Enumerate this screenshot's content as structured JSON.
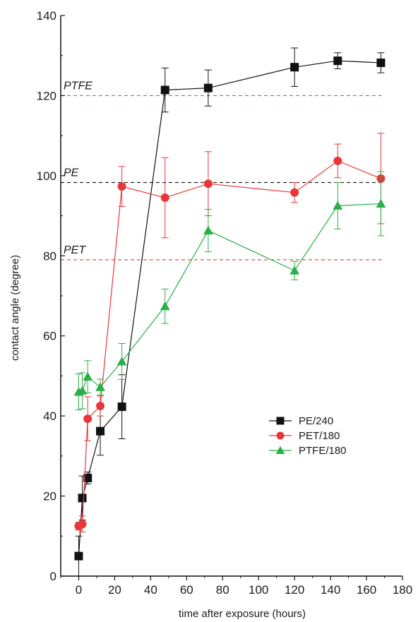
{
  "chart_data": {
    "type": "line",
    "title": "",
    "xlabel": "time after exposure (hours)",
    "ylabel": "contact angle (degree)",
    "xlim": [
      -10,
      180
    ],
    "ylim": [
      0,
      140
    ],
    "x_ticks": [
      0,
      20,
      40,
      60,
      80,
      100,
      120,
      140,
      160,
      180
    ],
    "y_ticks": [
      0,
      20,
      40,
      60,
      80,
      100,
      120,
      140
    ],
    "grid": false,
    "legend_position": "lower-right",
    "reference_lines": [
      {
        "label": "PTFE",
        "y": 120,
        "color": "#3aa655"
      },
      {
        "label": "PE",
        "y": 98.3,
        "color": "#222222"
      },
      {
        "label": "PET",
        "y": 79,
        "color": "#e8373a"
      }
    ],
    "series": [
      {
        "name": "PE/240",
        "color": "#111111",
        "marker": "square",
        "x": [
          0,
          2,
          5,
          12,
          24,
          48,
          72,
          120,
          144,
          168
        ],
        "y": [
          5,
          19.5,
          24.5,
          36.2,
          42.3,
          121.4,
          121.9,
          127.1,
          128.7,
          128.2
        ],
        "err": [
          5,
          5.5,
          1.5,
          6,
          8,
          5.5,
          4.5,
          4.8,
          2,
          2.5
        ]
      },
      {
        "name": "PET/180",
        "color": "#e8373a",
        "marker": "circle",
        "x": [
          0,
          2,
          5,
          12,
          24,
          48,
          72,
          120,
          144,
          168
        ],
        "y": [
          12.5,
          13,
          39.3,
          42.5,
          97.3,
          94.5,
          98,
          95.8,
          103.7,
          99.3
        ],
        "err": [
          1,
          2,
          5.5,
          2.5,
          5,
          10,
          8,
          2.5,
          4.2,
          11.3
        ]
      },
      {
        "name": "PTFE/180",
        "color": "#2ab04a",
        "marker": "triangle",
        "x": [
          0,
          2,
          5,
          12,
          24,
          48,
          72,
          120,
          144,
          168
        ],
        "y": [
          46,
          46.3,
          49.8,
          47.2,
          53.6,
          67.4,
          86.3,
          76.3,
          92.5,
          93
        ],
        "err": [
          4.5,
          4.5,
          4,
          2,
          4.5,
          4.3,
          5.3,
          2.3,
          5.8,
          8
        ]
      }
    ]
  }
}
